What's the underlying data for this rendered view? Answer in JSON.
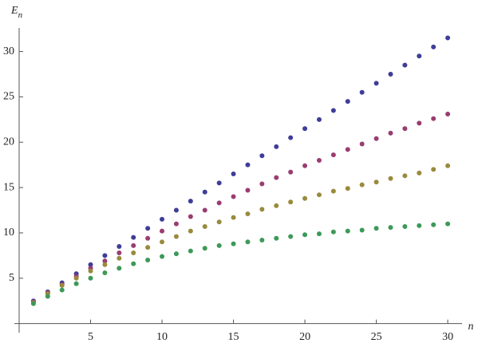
{
  "chart_data": {
    "type": "scatter",
    "y_label": {
      "main": "E",
      "sub": "n"
    },
    "x_label": "n",
    "x": [
      1,
      2,
      3,
      4,
      5,
      6,
      7,
      8,
      9,
      10,
      11,
      12,
      13,
      14,
      15,
      16,
      17,
      18,
      19,
      20,
      21,
      22,
      23,
      24,
      25,
      26,
      27,
      28,
      29,
      30
    ],
    "series": [
      {
        "color": "#3f3d99",
        "values": [
          2.5,
          3.5,
          4.5,
          5.5,
          6.5,
          7.5,
          8.5,
          9.5,
          10.5,
          11.5,
          12.5,
          13.5,
          14.5,
          15.5,
          16.5,
          17.5,
          18.5,
          19.5,
          20.5,
          21.5,
          22.5,
          23.5,
          24.5,
          25.5,
          26.5,
          27.5,
          28.5,
          29.5,
          30.5,
          31.5
        ]
      },
      {
        "color": "#993d71",
        "values": [
          2.4,
          3.4,
          4.3,
          5.2,
          6.1,
          6.9,
          7.8,
          8.6,
          9.4,
          10.2,
          11.0,
          11.8,
          12.5,
          13.3,
          14.0,
          14.7,
          15.4,
          16.1,
          16.7,
          17.4,
          18.0,
          18.6,
          19.2,
          19.8,
          20.4,
          21.0,
          21.5,
          22.1,
          22.6,
          23.1
        ]
      },
      {
        "color": "#998a3d",
        "values": [
          2.3,
          3.3,
          4.2,
          5.0,
          5.8,
          6.5,
          7.2,
          7.8,
          8.4,
          9.0,
          9.6,
          10.2,
          10.7,
          11.2,
          11.7,
          12.1,
          12.6,
          13.0,
          13.4,
          13.8,
          14.2,
          14.6,
          14.9,
          15.3,
          15.6,
          16.0,
          16.3,
          16.6,
          17.0,
          17.4
        ]
      },
      {
        "color": "#3d9959",
        "values": [
          2.2,
          3.0,
          3.7,
          4.4,
          5.0,
          5.6,
          6.1,
          6.6,
          7.0,
          7.4,
          7.7,
          8.0,
          8.3,
          8.6,
          8.8,
          9.0,
          9.2,
          9.4,
          9.6,
          9.8,
          9.9,
          10.1,
          10.2,
          10.3,
          10.5,
          10.6,
          10.7,
          10.8,
          10.9,
          11.0
        ]
      }
    ],
    "xlim": [
      0,
      31
    ],
    "xticks": [
      5,
      10,
      15,
      20,
      25,
      30
    ],
    "ylim": [
      -1,
      32.6
    ],
    "yticks": [
      5,
      10,
      15,
      20,
      25,
      30
    ]
  }
}
